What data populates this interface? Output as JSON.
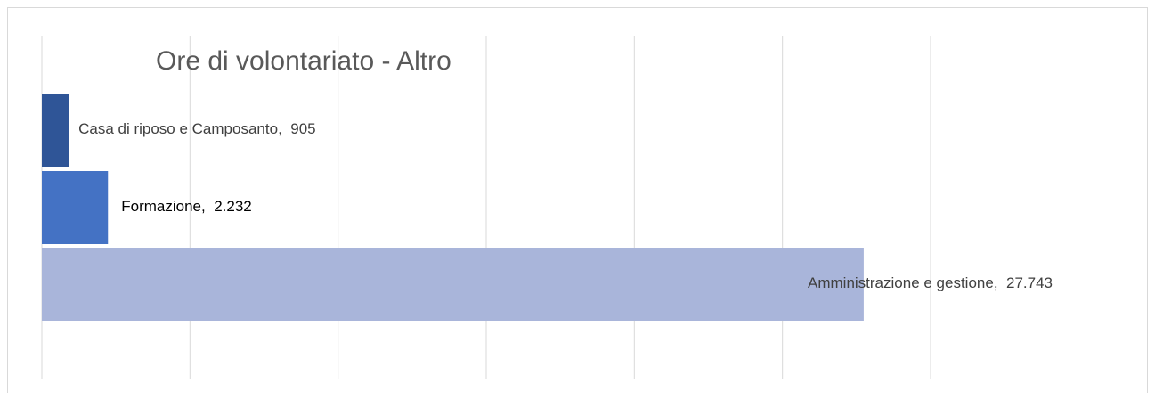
{
  "chart_data": {
    "type": "hbar",
    "title": "Ore di volontariato - Altro",
    "categories": [
      "Casa di riposo e Camposanto",
      "Formazione",
      "Amministrazione e gestione"
    ],
    "values": [
      905,
      2232,
      27743
    ],
    "value_labels": [
      "905",
      "2.232",
      "27.743"
    ],
    "colors": [
      "#2f5597",
      "#4472c4",
      "#a9b5da"
    ],
    "xlim": [
      0,
      30000
    ],
    "xticks": [
      0,
      5000,
      10000,
      15000,
      20000,
      25000,
      30000
    ],
    "grid": true
  }
}
